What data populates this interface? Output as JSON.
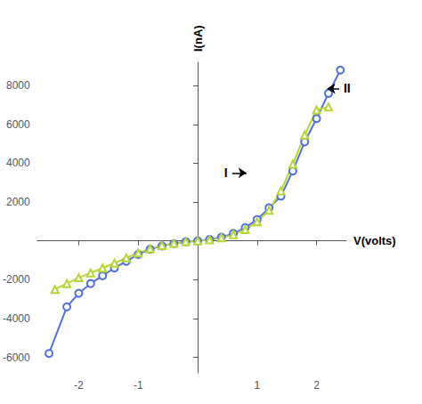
{
  "chart_data": {
    "type": "line",
    "xlabel": "V(volts)",
    "ylabel": "I(nA)",
    "xlim": [
      -2.7,
      2.5
    ],
    "ylim": [
      -6800,
      9200
    ],
    "xticks": [
      -2,
      -1,
      1,
      2
    ],
    "yticks": [
      -6000,
      -4000,
      -2000,
      2000,
      4000,
      6000,
      8000
    ],
    "grid": false,
    "series": [
      {
        "marker": "circle",
        "x": [
          -2.5,
          -2.2,
          -2.0,
          -1.8,
          -1.6,
          -1.4,
          -1.2,
          -1.0,
          -0.8,
          -0.6,
          -0.4,
          -0.2,
          0.0,
          0.2,
          0.4,
          0.6,
          0.8,
          1.0,
          1.2,
          1.4,
          1.6,
          1.8,
          2.0,
          2.2,
          2.4
        ],
        "values": [
          -5800,
          -3400,
          -2700,
          -2200,
          -1800,
          -1400,
          -1050,
          -700,
          -430,
          -260,
          -140,
          -45,
          0,
          75,
          190,
          380,
          680,
          1100,
          1700,
          2300,
          3600,
          5100,
          6300,
          7600,
          8800
        ]
      },
      {
        "marker": "triangle",
        "x": [
          -2.4,
          -2.2,
          -2.0,
          -1.8,
          -1.6,
          -1.4,
          -1.2,
          -1.0,
          -0.8,
          -0.6,
          -0.4,
          -0.2,
          0.0,
          0.2,
          0.4,
          0.6,
          0.8,
          1.0,
          1.2,
          1.4,
          1.6,
          1.8,
          2.0,
          2.2
        ],
        "values": [
          -2500,
          -2200,
          -1900,
          -1650,
          -1400,
          -1150,
          -880,
          -620,
          -410,
          -240,
          -125,
          -35,
          0,
          55,
          160,
          320,
          580,
          980,
          1580,
          2580,
          3950,
          5450,
          6750,
          6900
        ]
      }
    ],
    "annotations": [
      {
        "text": "I",
        "x": 0.58,
        "y": 3500,
        "arrow_x": 0.82,
        "arrow_y": 3500
      },
      {
        "text": "II",
        "x": 2.38,
        "y": 7850,
        "arrow_x": 2.18,
        "arrow_y": 7850
      }
    ]
  }
}
